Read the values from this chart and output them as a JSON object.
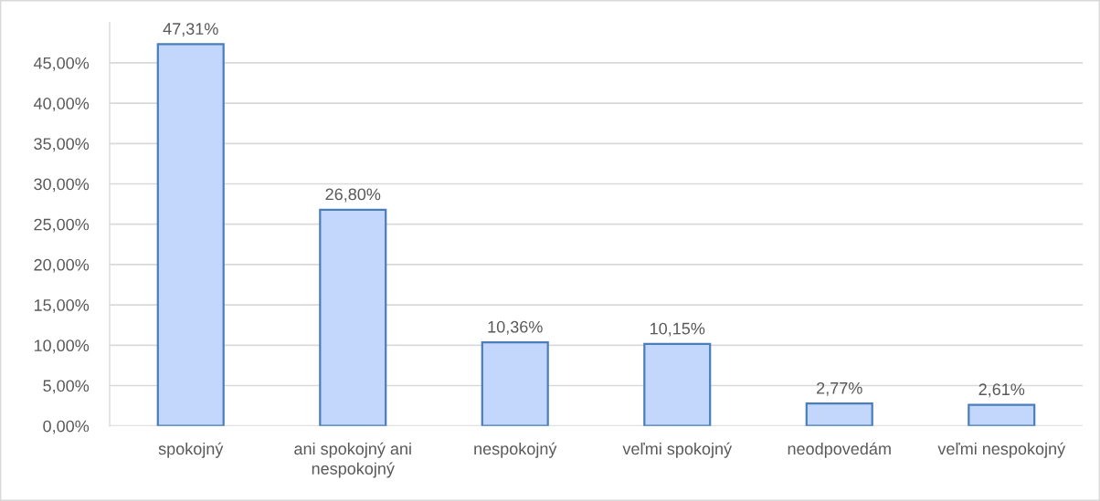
{
  "chart_data": {
    "type": "bar",
    "categories": [
      "spokojný",
      "ani spokojný ani nespokojný",
      "nespokojný",
      "veľmi spokojný",
      "neodpovedám",
      "veľmi nespokojný"
    ],
    "values": [
      47.31,
      26.8,
      10.36,
      10.15,
      2.77,
      2.61
    ],
    "value_labels": [
      "47,31%",
      "26,80%",
      "10,36%",
      "10,15%",
      "2,77%",
      "2,61%"
    ],
    "color": "#c3d6fb",
    "ylim": [
      0,
      50
    ],
    "yticks": [
      {
        "value": 0,
        "label": "0,00%"
      },
      {
        "value": 5,
        "label": "5,00%"
      },
      {
        "value": 10,
        "label": "10,00%"
      },
      {
        "value": 15,
        "label": "15,00%"
      },
      {
        "value": 20,
        "label": "20,00%"
      },
      {
        "value": 25,
        "label": "25,00%"
      },
      {
        "value": 30,
        "label": "30,00%"
      },
      {
        "value": 35,
        "label": "35,00%"
      },
      {
        "value": 40,
        "label": "40,00%"
      },
      {
        "value": 45,
        "label": "45,00%"
      }
    ],
    "grid": "y",
    "legend": false
  }
}
